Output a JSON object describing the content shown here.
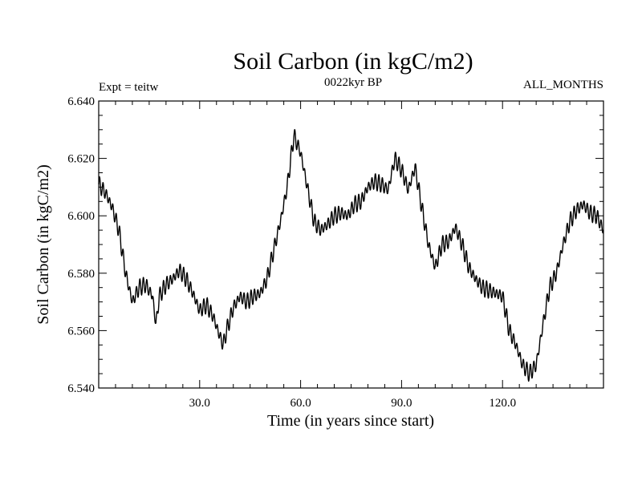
{
  "chart_data": {
    "type": "line",
    "title": "Soil Carbon (in kgC/m2)",
    "subtitle": "0022kyr BP",
    "left_annotation": "Expt = teitw",
    "right_annotation": "ALL_MONTHS",
    "xlabel": "Time (in years since start)",
    "ylabel": "Soil Carbon (in kgC/m2)",
    "xlim": [
      0,
      150
    ],
    "ylim": [
      6.54,
      6.64
    ],
    "x_ticks": [
      30,
      60,
      90,
      120
    ],
    "x_tick_labels": [
      "30.0",
      "60.0",
      "90.0",
      "120.0"
    ],
    "y_ticks": [
      6.54,
      6.56,
      6.58,
      6.6,
      6.62,
      6.64
    ],
    "y_tick_labels": [
      "6.540",
      "6.560",
      "6.580",
      "6.600",
      "6.620",
      "6.640"
    ],
    "grid": false,
    "line_color": "#000000",
    "series": [
      {
        "x": [
          0,
          2,
          4,
          6,
          8,
          10,
          12,
          14,
          16,
          17,
          18,
          20,
          22,
          24,
          26,
          28,
          30,
          32,
          34,
          36,
          37,
          38,
          40,
          42,
          44,
          46,
          48,
          50,
          52,
          54,
          56,
          58,
          60,
          62,
          64,
          66,
          68,
          70,
          72,
          74,
          76,
          78,
          80,
          82,
          84,
          86,
          88,
          90,
          92,
          94,
          96,
          98,
          100,
          102,
          104,
          106,
          108,
          110,
          112,
          114,
          116,
          118,
          120,
          122,
          124,
          126,
          128,
          130,
          132,
          134,
          136,
          138,
          140,
          142,
          144,
          146,
          148,
          150
        ],
        "y": [
          6.611,
          6.608,
          6.603,
          6.595,
          6.58,
          6.57,
          6.575,
          6.576,
          6.572,
          6.562,
          6.572,
          6.576,
          6.578,
          6.581,
          6.578,
          6.573,
          6.567,
          6.569,
          6.565,
          6.558,
          6.555,
          6.56,
          6.568,
          6.572,
          6.57,
          6.572,
          6.573,
          6.578,
          6.588,
          6.598,
          6.61,
          6.628,
          6.622,
          6.61,
          6.598,
          6.595,
          6.597,
          6.6,
          6.601,
          6.6,
          6.604,
          6.605,
          6.61,
          6.612,
          6.611,
          6.609,
          6.62,
          6.616,
          6.609,
          6.617,
          6.603,
          6.59,
          6.582,
          6.59,
          6.591,
          6.596,
          6.59,
          6.582,
          6.578,
          6.575,
          6.574,
          6.573,
          6.572,
          6.56,
          6.555,
          6.548,
          6.545,
          6.548,
          6.562,
          6.575,
          6.58,
          6.59,
          6.598,
          6.602,
          6.604,
          6.601,
          6.6,
          6.595
        ]
      }
    ]
  }
}
